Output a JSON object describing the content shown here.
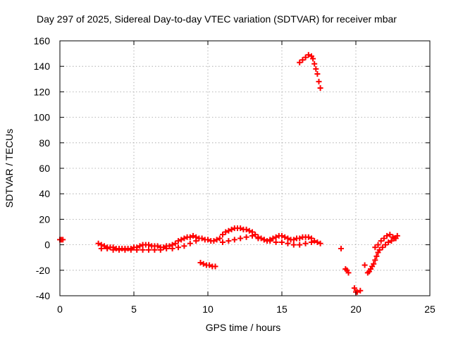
{
  "chart_data": {
    "type": "scatter",
    "title": "Day 297 of 2025, Sidereal Day-to-day VTEC variation (SDTVAR) for receiver mbar",
    "xlabel": "GPS time / hours",
    "ylabel": "SDTVAR / TECUs",
    "xlim": [
      0,
      25
    ],
    "ylim": [
      -40,
      160
    ],
    "xticks": [
      "0",
      "5",
      "10",
      "15",
      "20",
      "25"
    ],
    "yticks": [
      "-40",
      "-20",
      "0",
      "20",
      "40",
      "60",
      "80",
      "100",
      "120",
      "140",
      "160"
    ],
    "grid": true,
    "legend": "none",
    "marker": "plus",
    "color": "#ff0000",
    "series": [
      {
        "name": "SDTVAR",
        "x": [
          0.0,
          0.1,
          0.2,
          2.6,
          2.8,
          3.0,
          3.2,
          3.4,
          3.6,
          3.8,
          4.0,
          4.2,
          4.4,
          4.6,
          4.8,
          5.0,
          5.2,
          5.4,
          5.6,
          5.8,
          6.0,
          6.2,
          6.4,
          6.6,
          6.8,
          7.0,
          7.2,
          7.4,
          7.6,
          7.8,
          8.0,
          8.2,
          8.4,
          8.6,
          8.8,
          9.0,
          9.2,
          9.4,
          9.6,
          9.8,
          10.0,
          10.2,
          10.4,
          10.6,
          10.8,
          11.0,
          11.2,
          11.4,
          11.6,
          11.8,
          12.0,
          12.2,
          12.4,
          12.6,
          12.8,
          13.0,
          13.2,
          13.4,
          13.6,
          13.8,
          14.0,
          14.2,
          14.4,
          14.6,
          14.8,
          15.0,
          15.2,
          15.4,
          15.6,
          15.8,
          16.0,
          16.2,
          16.4,
          16.6,
          16.8,
          17.0,
          17.2,
          17.4,
          17.6,
          2.8,
          3.2,
          3.6,
          4.0,
          4.4,
          4.8,
          5.2,
          5.6,
          6.0,
          6.4,
          6.8,
          7.2,
          7.6,
          8.0,
          8.4,
          8.8,
          9.2,
          11.0,
          11.4,
          11.8,
          12.2,
          12.6,
          13.0,
          13.4,
          13.8,
          14.2,
          14.6,
          15.0,
          15.4,
          15.8,
          16.2,
          16.6,
          17.0,
          9.5,
          9.7,
          9.9,
          10.1,
          10.3,
          10.5,
          16.2,
          16.4,
          16.6,
          16.8,
          17.0,
          17.1,
          17.2,
          17.3,
          17.4,
          17.5,
          17.6,
          19.0,
          19.3,
          19.4,
          19.5,
          19.9,
          20.0,
          20.1,
          20.3,
          20.6,
          20.8,
          20.9,
          21.0,
          21.1,
          21.2,
          21.3,
          21.4,
          21.5,
          21.6,
          21.8,
          22.0,
          22.2,
          22.4,
          22.6,
          22.8,
          21.3,
          21.5,
          21.7,
          21.9,
          22.1,
          22.3,
          22.5,
          22.7
        ],
        "y": [
          4,
          4,
          4,
          1,
          0,
          -1,
          -2,
          -2,
          -2,
          -3,
          -3,
          -3,
          -3,
          -3,
          -3,
          -2,
          -2,
          -1,
          0,
          0,
          0,
          -1,
          -1,
          -1,
          -2,
          -2,
          -1,
          -1,
          0,
          1,
          3,
          4,
          5,
          6,
          6,
          7,
          6,
          5,
          5,
          4,
          4,
          3,
          3,
          4,
          5,
          8,
          10,
          11,
          12,
          13,
          13,
          13,
          12,
          12,
          11,
          10,
          8,
          6,
          5,
          4,
          3,
          4,
          5,
          6,
          7,
          7,
          6,
          5,
          4,
          4,
          5,
          5,
          6,
          6,
          6,
          5,
          3,
          2,
          1,
          -3,
          -3,
          -4,
          -4,
          -4,
          -4,
          -4,
          -4,
          -4,
          -4,
          -4,
          -3,
          -3,
          -2,
          -1,
          1,
          3,
          2,
          3,
          4,
          5,
          6,
          7,
          5,
          4,
          3,
          2,
          2,
          1,
          0,
          0,
          1,
          2,
          -14,
          -15,
          -16,
          -16,
          -17,
          -17,
          143,
          145,
          147,
          149,
          148,
          146,
          142,
          138,
          134,
          128,
          123,
          -3,
          -19,
          -20,
          -22,
          -34,
          -37,
          -37,
          -36,
          -16,
          -22,
          -21,
          -19,
          -17,
          -15,
          -12,
          -9,
          -6,
          -4,
          -2,
          0,
          2,
          3,
          5,
          7,
          -2,
          0,
          3,
          5,
          7,
          8,
          6,
          5
        ]
      }
    ]
  }
}
